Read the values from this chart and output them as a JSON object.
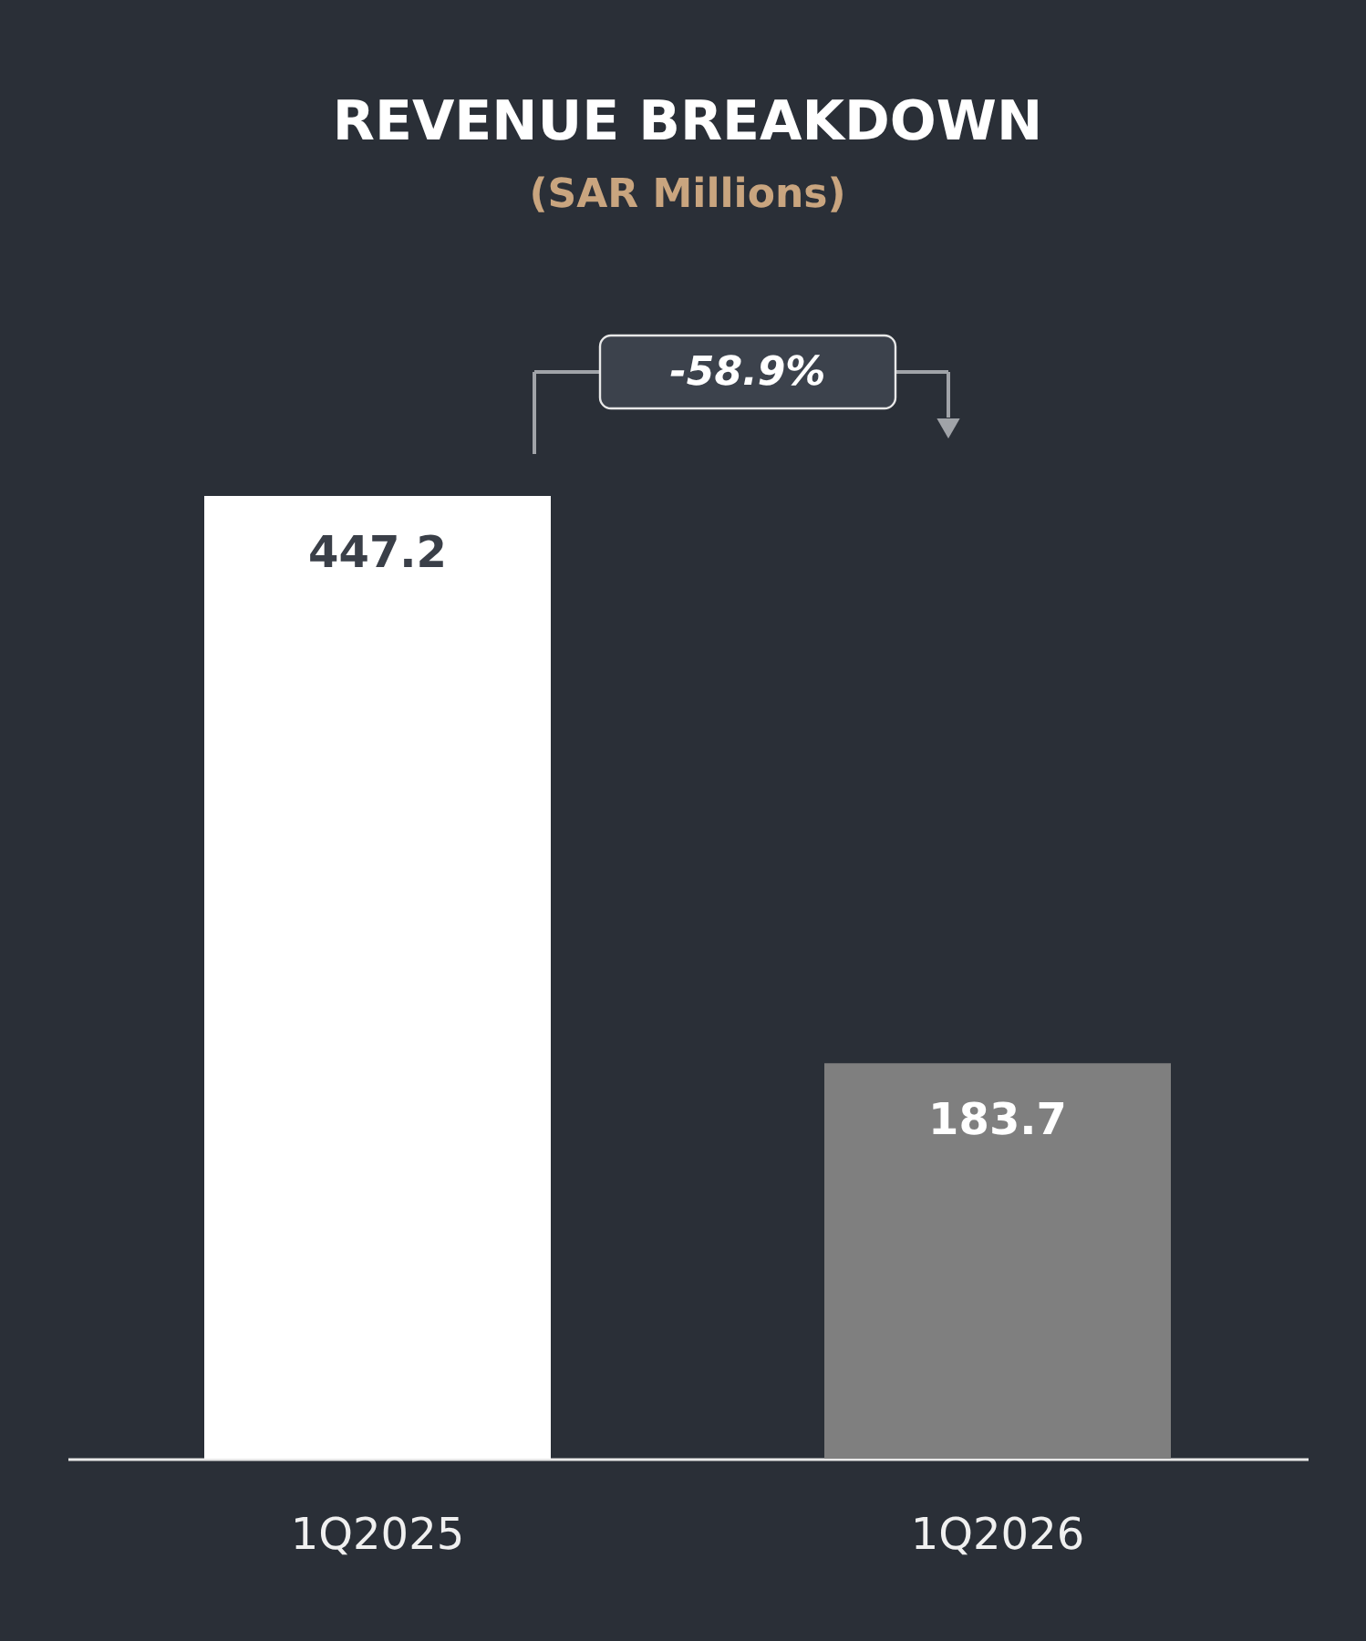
{
  "chart_data": {
    "type": "bar",
    "title": "REVENUE BREAKDOWN",
    "subtitle": "(SAR Millions)",
    "categories": [
      "1Q2025",
      "1Q2026"
    ],
    "values": [
      447.2,
      183.7
    ],
    "colors": [
      "#ffffff",
      "#7f7f7f"
    ],
    "data_labels": true,
    "grid": false,
    "annotations": [
      "-58.9%"
    ]
  }
}
